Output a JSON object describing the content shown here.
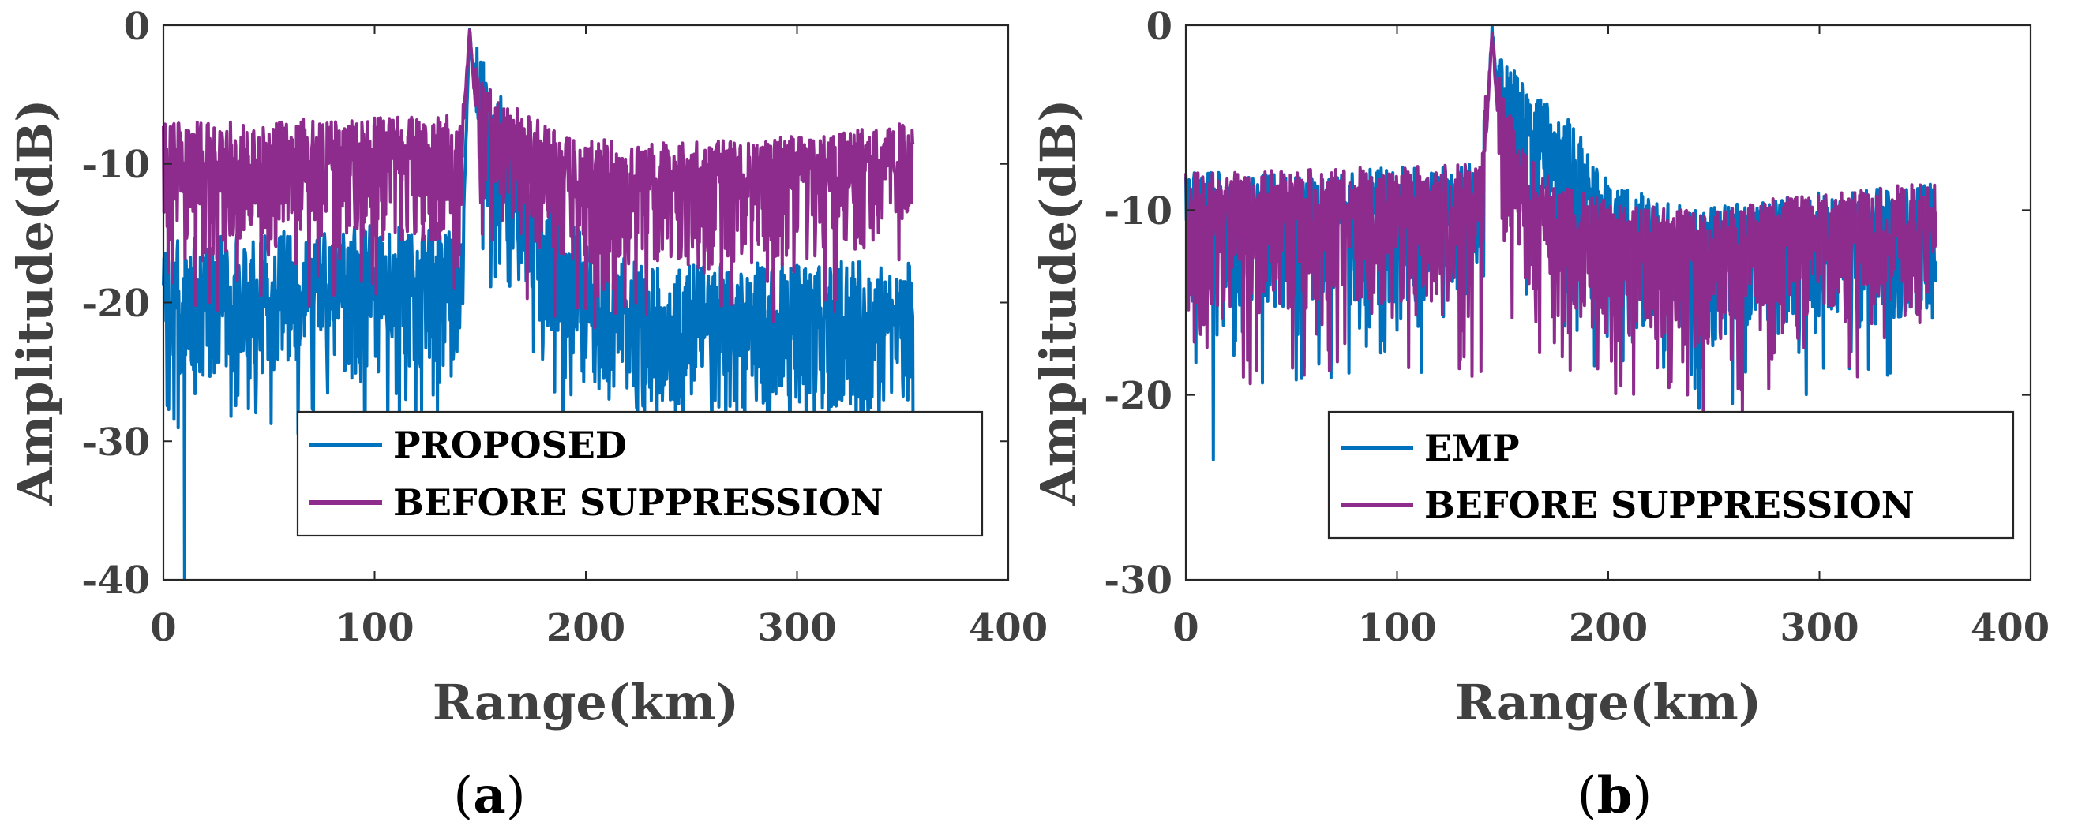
{
  "chart_data": [
    {
      "type": "line",
      "panel_caption": {
        "open": "(",
        "letter": "a",
        "close": ")"
      },
      "xlabel": "Range(km)",
      "ylabel": "Amplitude(dB)",
      "xlim": [
        0,
        400
      ],
      "ylim": [
        -40,
        0
      ],
      "xticks": [
        0,
        100,
        200,
        300,
        400
      ],
      "yticks": [
        0,
        -10,
        -20,
        -30,
        -40
      ],
      "xtick_labels": [
        "0",
        "100",
        "200",
        "300",
        "400"
      ],
      "ytick_labels": [
        "0",
        "-10",
        "-20",
        "-30",
        "-40"
      ],
      "peak_km": 145,
      "legend_location": "bottom-right",
      "series": [
        {
          "name": "PROPOSED",
          "color": "#0072BD",
          "x_range": [
            0,
            355
          ],
          "profile": [
            [
              0,
              -20
            ],
            [
              140,
              -18.5
            ],
            [
              142,
              -14
            ],
            [
              145,
              0
            ],
            [
              148,
              -6
            ],
            [
              158,
              -9
            ],
            [
              175,
              -14
            ],
            [
              200,
              -20
            ],
            [
              230,
              -22
            ],
            [
              280,
              -21.5
            ],
            [
              355,
              -21.5
            ]
          ],
          "noise_up": 4.5,
          "noise_down": 6,
          "min_dip": -40,
          "min_dip_km": 10,
          "seed": 11
        },
        {
          "name": "BEFORE SUPPRESSION",
          "color": "#8E2C8E",
          "x_range": [
            0,
            355
          ],
          "profile": [
            [
              0,
              -10
            ],
            [
              140,
              -9.5
            ],
            [
              142,
              -7
            ],
            [
              145,
              0
            ],
            [
              148,
              -6
            ],
            [
              158,
              -8
            ],
            [
              190,
              -11
            ],
            [
              230,
              -11.5
            ],
            [
              300,
              -11
            ],
            [
              355,
              -10
            ]
          ],
          "noise_up": 3,
          "noise_down": 6,
          "seed": 29
        }
      ]
    },
    {
      "type": "line",
      "panel_caption": {
        "open": "(",
        "letter": "b",
        "close": ")"
      },
      "xlabel": "Range(km)",
      "ylabel": "Amplitude(dB)",
      "xlim": [
        0,
        400
      ],
      "ylim": [
        -30,
        0
      ],
      "xticks": [
        0,
        100,
        200,
        300,
        400
      ],
      "yticks": [
        0,
        -10,
        -20,
        -30
      ],
      "xtick_labels": [
        "0",
        "100",
        "200",
        "300",
        "400"
      ],
      "ytick_labels": [
        "0",
        "-10",
        "-20",
        "-30"
      ],
      "peak_km": 145,
      "legend_location": "bottom-right",
      "series": [
        {
          "name": "EMP",
          "color": "#0072BD",
          "x_range": [
            0,
            355
          ],
          "profile": [
            [
              0,
              -10.5
            ],
            [
              140,
              -10
            ],
            [
              142,
              -6
            ],
            [
              145,
              0
            ],
            [
              148,
              -4
            ],
            [
              165,
              -6
            ],
            [
              185,
              -8
            ],
            [
              200,
              -11
            ],
            [
              240,
              -12.5
            ],
            [
              300,
              -11.5
            ],
            [
              355,
              -11
            ]
          ],
          "noise_up": 2.5,
          "noise_down": 5,
          "min_dip": -23.5,
          "min_dip_km": 13,
          "seed": 7
        },
        {
          "name": "BEFORE SUPPRESSION",
          "color": "#8E2C8E",
          "x_range": [
            0,
            355
          ],
          "profile": [
            [
              0,
              -10.5
            ],
            [
              140,
              -10
            ],
            [
              142,
              -6
            ],
            [
              145,
              0
            ],
            [
              148,
              -5
            ],
            [
              158,
              -9
            ],
            [
              175,
              -11
            ],
            [
              200,
              -12
            ],
            [
              240,
              -12.5
            ],
            [
              300,
              -11.5
            ],
            [
              355,
              -11
            ]
          ],
          "noise_up": 2.5,
          "noise_down": 5,
          "seed": 41
        }
      ]
    }
  ]
}
